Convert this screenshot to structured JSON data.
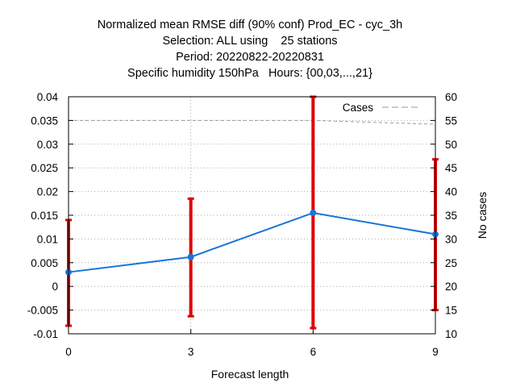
{
  "chart_data": {
    "type": "line",
    "title_lines": [
      "Normalized mean RMSE diff (90% conf) Prod_EC - cyc_3h",
      "Selection: ALL using    25 stations",
      "Period: 20220822-20220831",
      "Specific humidity 150hPa   Hours: {00,03,...,21}"
    ],
    "xlabel": "Forecast length",
    "ylabel_right": "No cases",
    "x": [
      0,
      3,
      6,
      9
    ],
    "xticks": [
      "0",
      "3",
      "6",
      "9"
    ],
    "xlim": [
      0,
      9
    ],
    "ylim": [
      -0.01,
      0.04
    ],
    "yticks": [
      "-0.01",
      "-0.005",
      "0",
      "0.005",
      "0.01",
      "0.015",
      "0.02",
      "0.025",
      "0.03",
      "0.035",
      "0.04"
    ],
    "ylim_right": [
      10,
      60
    ],
    "yticks_right": [
      "10",
      "15",
      "20",
      "25",
      "30",
      "35",
      "40",
      "45",
      "50",
      "55",
      "60"
    ],
    "grid": true,
    "legend_position": "top-right",
    "series": [
      {
        "values": [
          0.003,
          0.0062,
          0.0155,
          0.011
        ],
        "ci_lower": [
          -0.0083,
          -0.0063,
          -0.0088,
          -0.005
        ],
        "ci_upper": [
          0.014,
          0.0185,
          0.04,
          0.0268
        ],
        "color": "#1a75d6",
        "error_color": "#e00000"
      },
      {
        "name": "Cases",
        "axis": "right",
        "values": [
          55,
          55,
          55,
          54.2
        ],
        "color": "#999999",
        "dashed": true
      }
    ]
  }
}
